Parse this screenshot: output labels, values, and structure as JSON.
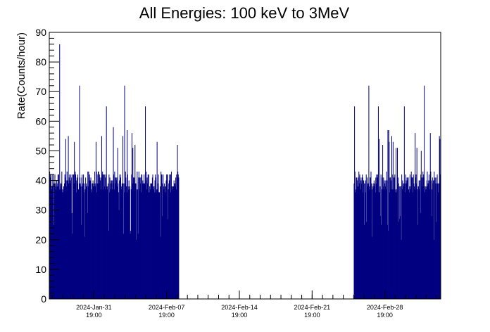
{
  "chart_data": {
    "type": "bar",
    "title": "All Energies:  100 keV to 3MeV",
    "ylabel": "Rate(Counts/hour)",
    "xlabel": "",
    "ylim": [
      0,
      90
    ],
    "y_ticks": [
      0,
      10,
      20,
      30,
      40,
      50,
      60,
      70,
      80,
      90
    ],
    "x_axis": {
      "type": "time",
      "range": [
        "2024-01-27T12:00",
        "2024-03-05T04:00"
      ],
      "ticks": [
        {
          "datetime": "2024-01-31T19:00",
          "label_date": "2024-Jan-31",
          "label_time": "19:00"
        },
        {
          "datetime": "2024-02-07T19:00",
          "label_date": "2024-Feb-07",
          "label_time": "19:00"
        },
        {
          "datetime": "2024-02-14T19:00",
          "label_date": "2024-Feb-14",
          "label_time": "19:00"
        },
        {
          "datetime": "2024-02-21T19:00",
          "label_date": "2024-Feb-21",
          "label_time": "19:00"
        },
        {
          "datetime": "2024-02-28T19:00",
          "label_date": "2024-Feb-28",
          "label_time": "19:00"
        }
      ]
    },
    "bin_width_hours": 1,
    "series": [
      {
        "color": "#000080",
        "segments": [
          {
            "start": "2024-01-27T12:00",
            "end": "2024-02-09T00:00",
            "typical_range": [
              36,
              43
            ],
            "max": 86
          },
          {
            "start": "2024-02-25T20:00",
            "end": "2024-03-05T04:00",
            "typical_range": [
              36,
              43
            ],
            "max": 72
          }
        ],
        "peaks": [
          {
            "x": "2024-01-28T12:00",
            "y": 86
          },
          {
            "x": "2024-01-30T10:00",
            "y": 72
          },
          {
            "x": "2024-02-03T18:00",
            "y": 72
          },
          {
            "x": "2024-02-02T00:00",
            "y": 65
          },
          {
            "x": "2024-02-05T18:00",
            "y": 65
          },
          {
            "x": "2024-02-27T06:00",
            "y": 72
          },
          {
            "x": "2024-03-03T14:00",
            "y": 72
          },
          {
            "x": "2024-02-25T21:00",
            "y": 65
          },
          {
            "x": "2024-02-28T04:00",
            "y": 65
          },
          {
            "x": "2024-03-01T16:00",
            "y": 65
          }
        ]
      }
    ]
  }
}
